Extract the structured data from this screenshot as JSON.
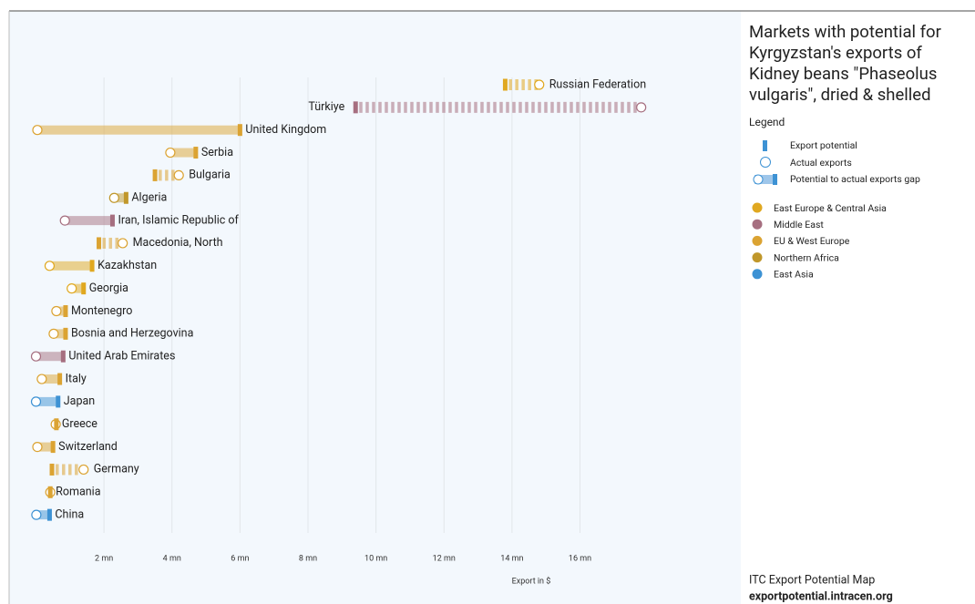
{
  "chart_data": {
    "type": "dumbbell",
    "title": [
      "Markets with potential for",
      "Kyrgyzstan's exports of",
      "Kidney beans \"Phaseolus",
      "vulgaris\", dried & shelled"
    ],
    "legend_title": "Legend",
    "legend_symbols": [
      "Export potential",
      "Actual exports",
      "Potential to actual exports gap"
    ],
    "regions": [
      {
        "name": "East Europe & Central Asia",
        "color": "#e0a820"
      },
      {
        "name": "Middle East",
        "color": "#a66f80"
      },
      {
        "name": "EU & West Europe",
        "color": "#dba332"
      },
      {
        "name": "Northern Africa",
        "color": "#c0972a"
      },
      {
        "name": "East Asia",
        "color": "#3d92d4"
      }
    ],
    "categories": [
      "Russian Federation",
      "Türkiye",
      "United Kingdom",
      "Serbia",
      "Bulgaria",
      "Algeria",
      "Iran, Islamic Republic of",
      "Macedonia, North",
      "Kazakhstan",
      "Georgia",
      "Montenegro",
      "Bosnia and Herzegovina",
      "United Arab Emirates",
      "Italy",
      "Japan",
      "Greece",
      "Switzerland",
      "Germany",
      "Romania",
      "China"
    ],
    "category_regions": [
      "East Europe & Central Asia",
      "Middle East",
      "EU & West Europe",
      "EU & West Europe",
      "EU & West Europe",
      "Northern Africa",
      "Middle East",
      "EU & West Europe",
      "East Europe & Central Asia",
      "East Europe & Central Asia",
      "EU & West Europe",
      "EU & West Europe",
      "Middle East",
      "EU & West Europe",
      "East Asia",
      "EU & West Europe",
      "EU & West Europe",
      "EU & West Europe",
      "EU & West Europe",
      "East Asia"
    ],
    "potential": [
      13.8,
      9.4,
      6.0,
      4.7,
      3.5,
      2.65,
      2.25,
      1.85,
      1.65,
      1.4,
      0.87,
      0.87,
      0.8,
      0.7,
      0.65,
      0.6,
      0.5,
      0.47,
      0.42,
      0.4
    ],
    "actual": [
      14.8,
      17.8,
      0.04,
      3.95,
      4.2,
      2.3,
      0.85,
      2.55,
      0.4,
      1.05,
      0.6,
      0.52,
      0.0,
      0.17,
      0.0,
      0.58,
      0.04,
      1.4,
      0.42,
      0.01
    ],
    "xlabel": "Export in $",
    "xlim": [
      0,
      20.1
    ],
    "xticks": [
      {
        "value": 2,
        "label": "2 mn"
      },
      {
        "value": 4,
        "label": "4 mn"
      },
      {
        "value": 6,
        "label": "6 mn"
      },
      {
        "value": 8,
        "label": "8 mn"
      },
      {
        "value": 10,
        "label": "10 mn"
      },
      {
        "value": 12,
        "label": "12 mn"
      },
      {
        "value": 14,
        "label": "14 mn"
      },
      {
        "value": 16,
        "label": "16 mn"
      }
    ],
    "grid": true
  },
  "footer": {
    "source": "ITC Export Potential Map",
    "url": "exportpotential.intracen.org"
  }
}
